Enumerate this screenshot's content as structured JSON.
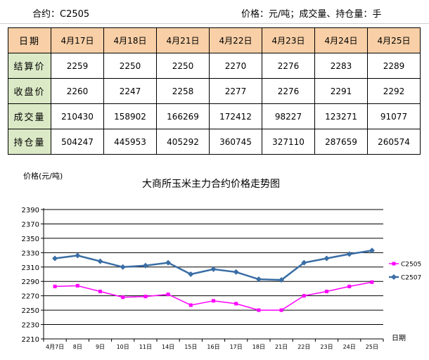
{
  "header": {
    "contract": "合约：C2505",
    "unit_info": "价格：元/吨；成交量、持仓量：手"
  },
  "table": {
    "header_label": "日期",
    "dates": [
      "4月17日",
      "4月18日",
      "4月21日",
      "4月22日",
      "4月23日",
      "4月24日",
      "4月25日"
    ],
    "rows": [
      {
        "label": "结算价",
        "values": [
          "2259",
          "2250",
          "2250",
          "2270",
          "2276",
          "2283",
          "2289"
        ]
      },
      {
        "label": "收盘价",
        "values": [
          "2260",
          "2247",
          "2258",
          "2277",
          "2276",
          "2291",
          "2292"
        ]
      },
      {
        "label": "成交量",
        "values": [
          "210430",
          "158902",
          "166269",
          "172412",
          "98227",
          "123271",
          "91077"
        ]
      },
      {
        "label": "持仓量",
        "values": [
          "504247",
          "445953",
          "405292",
          "360745",
          "327110",
          "287659",
          "260574"
        ]
      }
    ]
  },
  "chart_data": {
    "type": "line",
    "title": "大商所玉米主力合约价格走势图",
    "ylabel": "价格(元/吨)",
    "xlabel": "日期",
    "categories": [
      "4月7日",
      "8日",
      "9日",
      "10日",
      "11日",
      "14日",
      "15日",
      "16日",
      "17日",
      "18日",
      "21日",
      "22日",
      "23日",
      "24日",
      "25日"
    ],
    "ylim": [
      2210,
      2390
    ],
    "yticks": [
      2210,
      2230,
      2250,
      2270,
      2290,
      2310,
      2330,
      2350,
      2370,
      2390
    ],
    "grid": true,
    "legend": "right",
    "series": [
      {
        "name": "C2505",
        "color": "#ff00ff",
        "marker": "square",
        "values": [
          2283,
          2284,
          2276,
          2268,
          2269,
          2272,
          2257,
          2263,
          2259,
          2250,
          2250,
          2270,
          2276,
          2283,
          2289
        ]
      },
      {
        "name": "C2507",
        "color": "#3a6ea5",
        "marker": "diamond",
        "values": [
          2322,
          2326,
          2318,
          2310,
          2312,
          2316,
          2300,
          2307,
          2303,
          2293,
          2292,
          2316,
          2322,
          2328,
          2333
        ]
      }
    ]
  }
}
